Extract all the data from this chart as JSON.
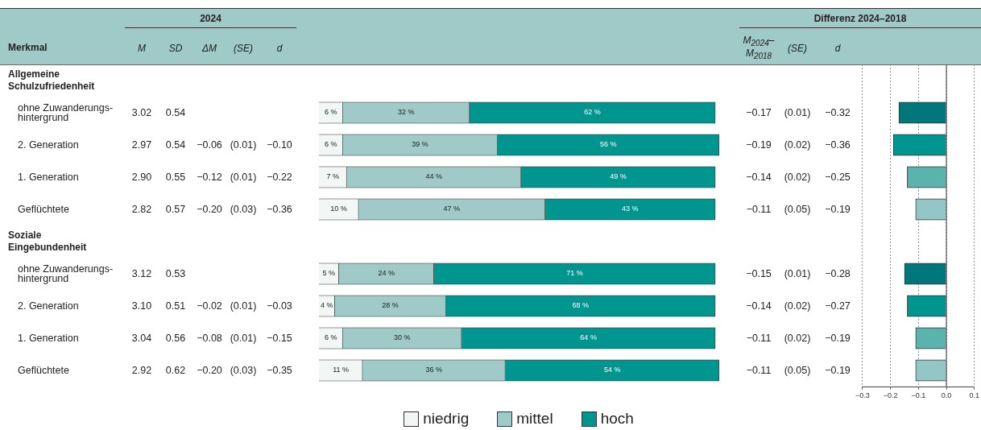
{
  "chart_data": [
    {
      "type": "other",
      "title": "2024",
      "ylabel": "Merkmal",
      "categories": [
        "M",
        "SD",
        "ΔM",
        "(SE)",
        "d"
      ],
      "y_categories": [
        "Allgemeine Schulzufriedenheit",
        "ohne Zuwanderungs-hintergrund",
        "2. Generation",
        "1. Generation",
        "Geflüchtete",
        "Soziale Eingebundenheit",
        "ohne Zuwanderungs-hintergrund",
        "2. Generation",
        "1. Generation",
        "Geflüchtete"
      ],
      "cell_labels": [
        [
          null,
          null,
          null,
          null,
          null
        ],
        [
          "3.02",
          "0.54",
          null,
          null,
          null
        ],
        [
          "2.97",
          "0.54",
          "−0.06",
          "(0.01)",
          "−0.10"
        ],
        [
          "2.90",
          "0.55",
          "−0.12",
          "(0.01)",
          "−0.22"
        ],
        [
          "2.82",
          "0.57",
          "−0.20",
          "(0.03)",
          "−0.36"
        ],
        [
          null,
          null,
          null,
          null,
          null
        ],
        [
          "3.12",
          "0.53",
          null,
          null,
          null
        ],
        [
          "3.10",
          "0.51",
          "−0.02",
          "(0.01)",
          "−0.03"
        ],
        [
          "3.04",
          "0.56",
          "−0.08",
          "(0.01)",
          "−0.15"
        ],
        [
          "2.92",
          "0.62",
          "−0.20",
          "(0.03)",
          "−0.35"
        ]
      ]
    },
    {
      "type": "bar",
      "orientation": "horizontal",
      "stacked": true,
      "legend": "bottom",
      "categories": [
        null,
        null,
        null,
        null,
        null,
        null,
        null,
        null
      ],
      "series": [
        {
          "name": "niedrig",
          "color": "#f2f7f6",
          "values": [
            6,
            6,
            7,
            10,
            5,
            4,
            6,
            11
          ],
          "value_labels": [
            "6 %",
            "6 %",
            "7 %",
            "10 %",
            "5 %",
            "4 %",
            "6 %",
            "11 %"
          ]
        },
        {
          "name": "mittel",
          "color": "#9fcac8",
          "values": [
            32,
            39,
            44,
            47,
            24,
            28,
            30,
            36
          ],
          "value_labels": [
            "32 %",
            "39 %",
            "44 %",
            "47 %",
            "24 %",
            "28 %",
            "30 %",
            "36 %"
          ]
        },
        {
          "name": "hoch",
          "color": "#00958f",
          "values": [
            62,
            56,
            49,
            43,
            71,
            68,
            64,
            54
          ],
          "value_labels": [
            "62 %",
            "56 %",
            "49 %",
            "43 %",
            "71 %",
            "68 %",
            "64 %",
            "54 %"
          ]
        }
      ]
    },
    {
      "type": "other",
      "title": "Differenz 2024–2018",
      "categories": [
        "M$_{2024}$–M$_{2018}$",
        "(SE)",
        "d"
      ],
      "cell_labels": [
        [
          null,
          null,
          null
        ],
        [
          "−0.17",
          "(0.01)",
          "−0.32"
        ],
        [
          "−0.19",
          "(0.02)",
          "−0.36"
        ],
        [
          "−0.14",
          "(0.02)",
          "−0.25"
        ],
        [
          "−0.11",
          "(0.05)",
          "−0.19"
        ],
        [
          null,
          null,
          null
        ],
        [
          "−0.15",
          "(0.01)",
          "−0.28"
        ],
        [
          "−0.14",
          "(0.02)",
          "−0.27"
        ],
        [
          "−0.11",
          "(0.02)",
          "−0.19"
        ],
        [
          "−0.11",
          "(0.05)",
          "−0.19"
        ]
      ]
    },
    {
      "type": "bar",
      "orientation": "horizontal",
      "grid": "x",
      "categories": [
        null,
        null,
        null,
        null,
        null,
        null,
        null,
        null
      ],
      "values": [
        -0.17,
        -0.19,
        -0.14,
        -0.11,
        -0.15,
        -0.14,
        -0.11,
        -0.11
      ],
      "colors": [
        "#00777a",
        "#00958f",
        "#5bb3ae",
        "#93c7c6",
        "#00777a",
        "#00958f",
        "#5bb3ae",
        "#93c7c6"
      ],
      "xlim": [
        -0.3,
        0.1
      ],
      "xticks": [
        {
          "value": -0.3,
          "label": "−0.3"
        },
        {
          "value": -0.2,
          "label": "−0.2"
        },
        {
          "value": -0.1,
          "label": "−0.1"
        },
        {
          "value": 0,
          "label": "0.0"
        },
        {
          "value": 0.1,
          "label": "0.1"
        }
      ],
      "ref_lines": [
        {
          "axis": "x",
          "value": 0,
          "color": "#555555"
        }
      ]
    }
  ]
}
